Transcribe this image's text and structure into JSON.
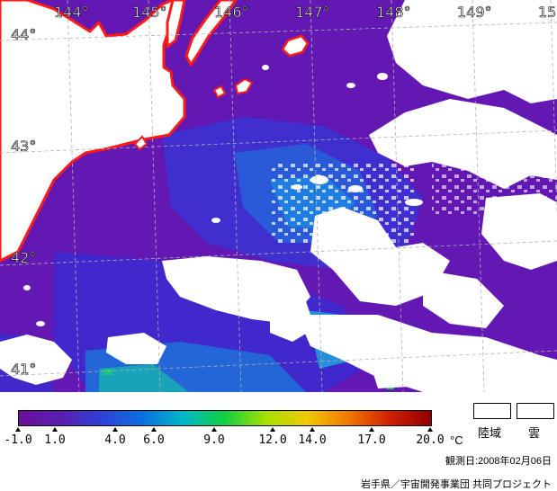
{
  "map": {
    "longitude_labels": [
      "144°",
      "145°",
      "146°",
      "147°",
      "148°",
      "149°",
      "15"
    ],
    "latitude_labels": [
      "44°",
      "43°",
      "42°",
      "41°"
    ]
  },
  "legend": {
    "ticks": [
      "-1.0",
      "1.0",
      "4.0",
      "6.0",
      "9.0",
      "12.0",
      "14.0",
      "17.0",
      "20.0"
    ],
    "unit": "°C",
    "land_label": "陸域",
    "cloud_label": "雲",
    "observation_date": "観測日:2008年02月06日",
    "credit": "岩手県／宇宙開発事業団 共同プロジェクト"
  },
  "colors": {
    "sea_cold": "#6a1ab8",
    "sea_mid": "#3f3fdc",
    "sea_warm": "#1f8ae0",
    "coast": "#ff1a1a",
    "land": "#ffffff",
    "cloud": "#ffffff"
  },
  "colorbar_stops": [
    "#6a0f9a",
    "#5a1fb0",
    "#3040d8",
    "#0a70e0",
    "#00b8c8",
    "#10d040",
    "#a8e000",
    "#f0c800",
    "#f07800",
    "#d02000",
    "#900000"
  ]
}
